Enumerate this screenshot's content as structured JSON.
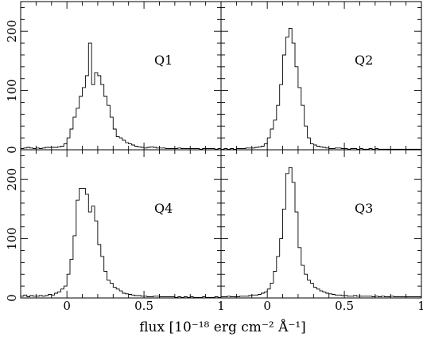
{
  "chart_data": {
    "type": "histogram-grid",
    "xlabel": "flux [10⁻¹⁸ erg cm⁻² Å⁻¹]",
    "x_ticks": [
      "0",
      "0.5",
      "1"
    ],
    "y_ticks": [
      "0",
      "100",
      "200"
    ],
    "xlim": [
      -0.3,
      1.0
    ],
    "ylim": [
      0,
      250
    ],
    "bin_width": 0.02,
    "bin_start": -0.3,
    "panels": [
      {
        "name": "Q1",
        "counts": [
          2,
          3,
          4,
          3,
          2,
          3,
          2,
          3,
          4,
          4,
          4,
          4,
          5,
          6,
          10,
          20,
          35,
          55,
          70,
          90,
          105,
          125,
          180,
          110,
          130,
          125,
          110,
          90,
          75,
          55,
          35,
          22,
          20,
          16,
          12,
          10,
          8,
          6,
          5,
          4,
          3,
          4,
          5,
          4,
          3,
          3,
          3,
          2,
          2,
          2,
          2,
          3,
          2,
          2,
          2,
          2,
          2,
          2,
          1,
          2,
          2,
          2,
          2,
          1,
          2
        ]
      },
      {
        "name": "Q2",
        "counts": [
          1,
          2,
          1,
          2,
          1,
          2,
          2,
          2,
          3,
          3,
          3,
          4,
          5,
          6,
          10,
          20,
          35,
          50,
          75,
          110,
          160,
          190,
          205,
          180,
          140,
          105,
          75,
          40,
          20,
          10,
          8,
          6,
          5,
          4,
          3,
          2,
          2,
          3,
          3,
          2,
          2,
          1,
          2,
          2,
          1,
          2,
          1,
          1,
          2,
          1,
          2,
          1,
          1,
          1,
          1,
          1,
          1,
          1,
          1,
          1,
          1,
          1,
          1,
          1,
          1
        ]
      },
      {
        "name": "Q4",
        "counts": [
          3,
          5,
          2,
          4,
          3,
          3,
          4,
          3,
          4,
          6,
          5,
          8,
          10,
          15,
          20,
          40,
          65,
          105,
          165,
          185,
          185,
          175,
          145,
          155,
          130,
          90,
          70,
          45,
          30,
          25,
          18,
          15,
          12,
          8,
          7,
          6,
          5,
          4,
          4,
          3,
          3,
          2,
          2,
          3,
          3,
          2,
          2,
          2,
          2,
          2,
          1,
          2,
          1,
          2,
          1,
          2,
          1,
          1,
          1,
          2,
          1,
          1,
          1,
          2,
          1
        ]
      },
      {
        "name": "Q3",
        "counts": [
          2,
          2,
          3,
          2,
          2,
          2,
          3,
          3,
          3,
          4,
          5,
          5,
          6,
          8,
          10,
          15,
          25,
          45,
          70,
          100,
          150,
          210,
          220,
          195,
          145,
          85,
          55,
          40,
          30,
          25,
          18,
          15,
          12,
          10,
          8,
          7,
          6,
          5,
          5,
          4,
          4,
          3,
          3,
          4,
          3,
          3,
          3,
          3,
          3,
          2,
          3,
          2,
          3,
          2,
          2,
          3,
          2,
          2,
          2,
          2,
          2,
          2,
          2,
          2,
          2
        ]
      }
    ]
  }
}
